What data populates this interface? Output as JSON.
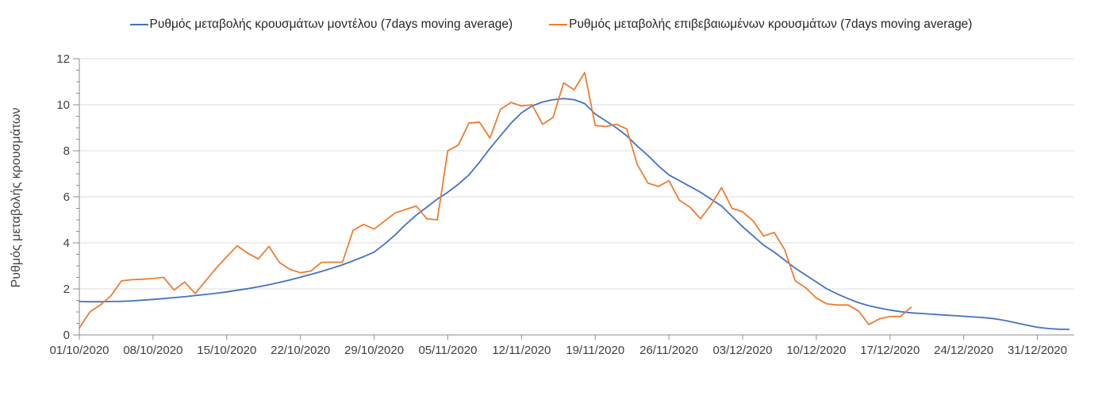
{
  "chart_data": {
    "type": "line",
    "title": "",
    "ylabel": "Ρυθμός μεταβολής κρουσμάτων",
    "xlabel": "",
    "ylim": [
      0,
      12
    ],
    "y_major_step": 2,
    "y_minor_step": 0.5,
    "grid": "horizontal-major",
    "legend_position": "top-center",
    "x_unit": "daily points starting 01/10/2020",
    "x_tick_labels": [
      "01/10/2020",
      "08/10/2020",
      "15/10/2020",
      "22/10/2020",
      "29/10/2020",
      "05/11/2020",
      "12/11/2020",
      "19/11/2020",
      "26/11/2020",
      "03/12/2020",
      "10/12/2020",
      "17/12/2020",
      "24/12/2020",
      "31/12/2020"
    ],
    "x_tick_days": [
      0,
      7,
      14,
      21,
      28,
      35,
      42,
      49,
      56,
      63,
      70,
      77,
      84,
      91
    ],
    "x_range_days": [
      0,
      94.5
    ],
    "axis_color": "#8c8c8c",
    "gridline_color": "#dcdcdc",
    "series": [
      {
        "name": "Ρυθμός μεταβολής κρουσμάτων μοντέλου (7days moving average)",
        "color": "#4472C4",
        "start_day": 0,
        "values": [
          1.45,
          1.44,
          1.44,
          1.45,
          1.46,
          1.48,
          1.51,
          1.54,
          1.58,
          1.62,
          1.66,
          1.71,
          1.76,
          1.81,
          1.87,
          1.94,
          2.01,
          2.09,
          2.18,
          2.28,
          2.39,
          2.51,
          2.63,
          2.76,
          2.9,
          3.05,
          3.22,
          3.4,
          3.6,
          3.95,
          4.35,
          4.8,
          5.2,
          5.55,
          5.9,
          6.2,
          6.55,
          6.95,
          7.5,
          8.1,
          8.65,
          9.2,
          9.65,
          9.95,
          10.12,
          10.22,
          10.27,
          10.22,
          10.05,
          9.6,
          9.3,
          9.0,
          8.65,
          8.2,
          7.8,
          7.35,
          6.95,
          6.7,
          6.45,
          6.2,
          5.9,
          5.6,
          5.15,
          4.7,
          4.3,
          3.9,
          3.6,
          3.25,
          2.9,
          2.6,
          2.3,
          2.0,
          1.78,
          1.58,
          1.4,
          1.27,
          1.17,
          1.08,
          1.01,
          0.96,
          0.93,
          0.9,
          0.87,
          0.84,
          0.81,
          0.78,
          0.75,
          0.7,
          0.62,
          0.52,
          0.42,
          0.33,
          0.28,
          0.25,
          0.24
        ]
      },
      {
        "name": "Ρυθμός μεταβολής επιβεβαιωμένων κρουσμάτων (7days moving average)",
        "color": "#ED7D31",
        "start_day": 0,
        "values": [
          0.3,
          1.0,
          1.3,
          1.7,
          2.35,
          2.4,
          2.42,
          2.45,
          2.5,
          1.95,
          2.3,
          1.8,
          2.35,
          2.9,
          3.4,
          3.87,
          3.55,
          3.3,
          3.85,
          3.15,
          2.85,
          2.7,
          2.78,
          3.15,
          3.16,
          3.16,
          4.55,
          4.8,
          4.6,
          4.95,
          5.3,
          5.45,
          5.6,
          5.05,
          5.0,
          8.0,
          8.25,
          9.2,
          9.25,
          8.55,
          9.8,
          10.1,
          9.95,
          10.0,
          9.15,
          9.45,
          10.95,
          10.65,
          11.4,
          9.1,
          9.05,
          9.15,
          8.95,
          7.4,
          6.6,
          6.45,
          6.7,
          5.85,
          5.55,
          5.05,
          5.65,
          6.4,
          5.5,
          5.35,
          4.95,
          4.3,
          4.45,
          3.7,
          2.35,
          2.05,
          1.6,
          1.35,
          1.3,
          1.3,
          1.05,
          0.45,
          0.7,
          0.8,
          0.8,
          1.2
        ]
      }
    ]
  }
}
